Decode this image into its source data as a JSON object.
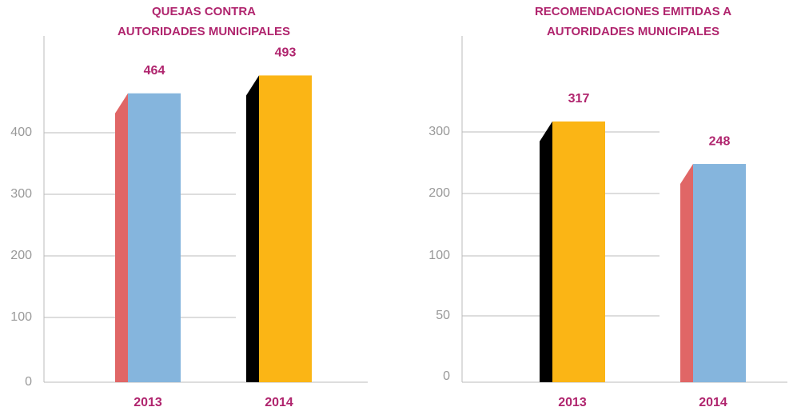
{
  "chart_data": [
    {
      "type": "bar",
      "title": [
        "QUEJAS CONTRA",
        "AUTORIDADES MUNICIPALES"
      ],
      "categories": [
        "2013",
        "2014"
      ],
      "values": [
        464,
        493
      ],
      "colors": [
        "#85b5dd",
        "#fbb515"
      ],
      "side_colors": [
        "#e06666",
        "#000000"
      ],
      "ylim": [
        0,
        550
      ],
      "yticks": [
        0,
        100,
        200,
        300,
        400
      ],
      "grid": true
    },
    {
      "type": "bar",
      "title": [
        "RECOMENDACIONES EMITIDAS A",
        "AUTORIDADES MUNICIPALES"
      ],
      "categories": [
        "2013",
        "2014"
      ],
      "values": [
        317,
        248
      ],
      "colors": [
        "#fbb515",
        "#85b5dd"
      ],
      "side_colors": [
        "#000000",
        "#e06666"
      ],
      "ylim": [
        0,
        450
      ],
      "yticks": [
        0,
        50,
        100,
        200,
        300
      ],
      "grid": true
    }
  ]
}
